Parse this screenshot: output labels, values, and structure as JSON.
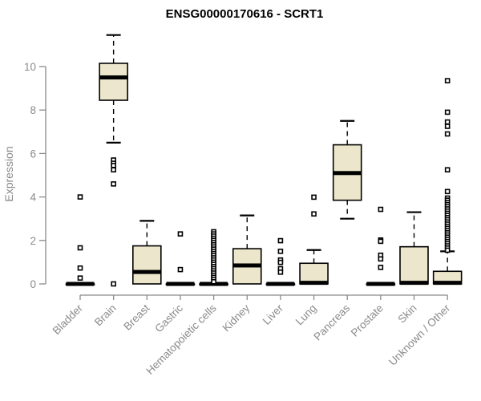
{
  "chart_data": {
    "type": "boxplot",
    "title": "ENSG00000170616 - SCRT1",
    "ylabel": "Expression",
    "xlabel": "",
    "ylim": [
      0,
      11.5
    ],
    "yticks": [
      0,
      2,
      4,
      6,
      8,
      10
    ],
    "grid": false,
    "legend": "none",
    "box_fill": "#ece7cc",
    "box_stroke": "#000000",
    "axis_color": "#8a8a8a",
    "categories": [
      "Bladder",
      "Brain",
      "Breast",
      "Gastric",
      "Hematopoietic cells",
      "Kidney",
      "Liver",
      "Lung",
      "Pancreas",
      "Prostate",
      "Skin",
      "Unknown / Other"
    ],
    "boxes": [
      {
        "label": "Bladder",
        "whisker_low": 0,
        "q1": 0,
        "median": 0,
        "q3": 0,
        "whisker_high": 0,
        "outliers": [
          4.0,
          1.66,
          0.73,
          0.27
        ]
      },
      {
        "label": "Brain",
        "whisker_low": 6.5,
        "q1": 8.45,
        "median": 9.5,
        "q3": 10.15,
        "whisker_high": 11.45,
        "outliers": [
          5.7,
          5.55,
          5.45,
          5.25,
          4.6,
          0
        ]
      },
      {
        "label": "Breast",
        "whisker_low": 0,
        "q1": 0,
        "median": 0.55,
        "q3": 1.75,
        "whisker_high": 2.9,
        "outliers": []
      },
      {
        "label": "Gastric",
        "whisker_low": 0,
        "q1": 0,
        "median": 0,
        "q3": 0,
        "whisker_high": 0,
        "outliers": [
          2.3,
          0.66
        ]
      },
      {
        "label": "Hematopoietic cells",
        "whisker_low": 0,
        "q1": 0,
        "median": 0,
        "q3": 0,
        "whisker_high": 0,
        "outliers": [
          2.4,
          2.3,
          2.2,
          2.1,
          2.0,
          1.9,
          1.8,
          1.7,
          1.6,
          1.5,
          1.4,
          1.3,
          1.2,
          1.1,
          1.0,
          0.9,
          0.8,
          0.7,
          0.6,
          0.5,
          0.4,
          0.3,
          0.2,
          0.1
        ]
      },
      {
        "label": "Kidney",
        "whisker_low": 0,
        "q1": 0,
        "median": 0.85,
        "q3": 1.62,
        "whisker_high": 3.15,
        "outliers": []
      },
      {
        "label": "Liver",
        "whisker_low": 0,
        "q1": 0,
        "median": 0,
        "q3": 0,
        "whisker_high": 0,
        "outliers": [
          1.99,
          1.5,
          1.1,
          0.99,
          0.7,
          0.54
        ]
      },
      {
        "label": "Lung",
        "whisker_low": 0,
        "q1": 0,
        "median": 0.05,
        "q3": 0.95,
        "whisker_high": 1.56,
        "outliers": [
          3.99,
          3.22
        ]
      },
      {
        "label": "Pancreas",
        "whisker_low": 3.0,
        "q1": 3.85,
        "median": 5.1,
        "q3": 6.4,
        "whisker_high": 7.5,
        "outliers": []
      },
      {
        "label": "Prostate",
        "whisker_low": 0,
        "q1": 0,
        "median": 0,
        "q3": 0,
        "whisker_high": 0,
        "outliers": [
          3.43,
          2.02,
          1.96,
          1.32,
          1.15,
          0.76
        ]
      },
      {
        "label": "Skin",
        "whisker_low": 0,
        "q1": 0,
        "median": 0.05,
        "q3": 1.71,
        "whisker_high": 3.3,
        "outliers": []
      },
      {
        "label": "Unknown / Other",
        "whisker_low": 0,
        "q1": 0,
        "median": 0.05,
        "q3": 0.58,
        "whisker_high": 1.5,
        "outliers": [
          9.35,
          7.9,
          7.45,
          7.25,
          6.9,
          5.25,
          4.25,
          3.95,
          3.85,
          3.75,
          3.65,
          3.55,
          3.45,
          3.35,
          3.25,
          3.15,
          3.05,
          2.95,
          2.85,
          2.75,
          2.65,
          2.55,
          2.45,
          2.35,
          2.25,
          2.15,
          2.05,
          1.95,
          1.85,
          1.75,
          1.65,
          1.55
        ]
      }
    ]
  }
}
